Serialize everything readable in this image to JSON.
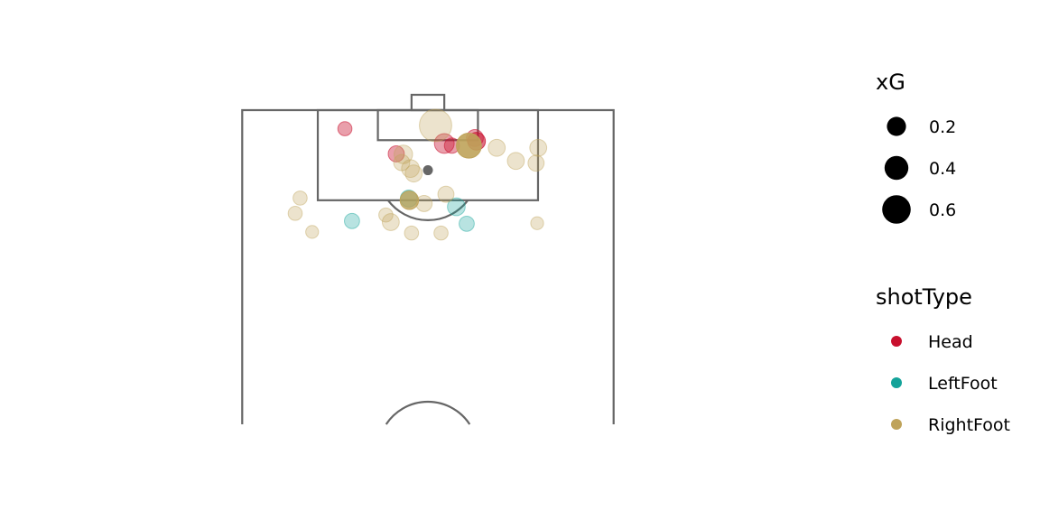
{
  "chart_data": {
    "type": "scatter",
    "title": "",
    "xlabel": "",
    "ylabel": "",
    "pitch": {
      "length_m": 105,
      "width_m": 68,
      "half_shown": "attacking"
    },
    "size_legend": {
      "title": "xG",
      "values": [
        0.2,
        0.4,
        0.6
      ],
      "labels": [
        "0.2",
        "0.4",
        "0.6"
      ]
    },
    "color_legend": {
      "title": "shotType",
      "entries": [
        {
          "name": "Head",
          "color": "#c8102e"
        },
        {
          "name": "LeftFoot",
          "color": "#14a39a"
        },
        {
          "name": "RightFoot",
          "color": "#bfa35a"
        }
      ]
    },
    "colors": {
      "line": "#666666",
      "penalty_spot": "#666666"
    },
    "series": [
      {
        "name": "Head",
        "color": "#c8102e",
        "points": [
          {
            "x": -15.2,
            "y": 101.6,
            "xG": 0.03,
            "alpha": 0.4
          },
          {
            "x": 3.0,
            "y": 98.9,
            "xG": 0.1,
            "alpha": 0.4
          },
          {
            "x": 4.4,
            "y": 98.5,
            "xG": 0.04,
            "alpha": 0.4
          },
          {
            "x": 8.6,
            "y": 99.9,
            "xG": 0.06,
            "alpha": 0.4
          },
          {
            "x": 8.9,
            "y": 99.3,
            "xG": 0.07,
            "alpha": 0.6
          },
          {
            "x": -5.8,
            "y": 97.0,
            "xG": 0.05,
            "alpha": 0.4
          }
        ]
      },
      {
        "name": "LeftFoot",
        "color": "#14a39a",
        "points": [
          {
            "x": -3.5,
            "y": 88.8,
            "xG": 0.06,
            "alpha": 0.4
          },
          {
            "x": 5.2,
            "y": 87.3,
            "xG": 0.07,
            "alpha": 0.3
          },
          {
            "x": -13.9,
            "y": 84.7,
            "xG": 0.04,
            "alpha": 0.3
          },
          {
            "x": 7.1,
            "y": 84.2,
            "xG": 0.04,
            "alpha": 0.3
          }
        ]
      },
      {
        "name": "RightFoot",
        "color": "#bfa35a",
        "points": [
          {
            "x": 1.4,
            "y": 102.2,
            "xG": 0.4,
            "alpha": 0.3
          },
          {
            "x": 7.5,
            "y": 98.5,
            "xG": 0.2,
            "alpha": 0.9
          },
          {
            "x": 12.6,
            "y": 98.1,
            "xG": 0.06,
            "alpha": 0.3
          },
          {
            "x": 20.2,
            "y": 98.1,
            "xG": 0.06,
            "alpha": 0.3
          },
          {
            "x": -4.5,
            "y": 96.9,
            "xG": 0.08,
            "alpha": 0.3
          },
          {
            "x": -4.8,
            "y": 95.4,
            "xG": 0.05,
            "alpha": 0.3
          },
          {
            "x": -3.2,
            "y": 94.3,
            "xG": 0.07,
            "alpha": 0.3
          },
          {
            "x": -2.6,
            "y": 93.4,
            "xG": 0.06,
            "alpha": 0.3
          },
          {
            "x": 16.1,
            "y": 95.7,
            "xG": 0.06,
            "alpha": 0.3
          },
          {
            "x": 19.8,
            "y": 95.3,
            "xG": 0.05,
            "alpha": 0.3
          },
          {
            "x": -3.4,
            "y": 88.5,
            "xG": 0.08,
            "alpha": 0.8
          },
          {
            "x": 3.3,
            "y": 89.6,
            "xG": 0.05,
            "alpha": 0.3
          },
          {
            "x": -0.7,
            "y": 87.9,
            "xG": 0.05,
            "alpha": 0.3
          },
          {
            "x": -23.4,
            "y": 88.9,
            "xG": 0.03,
            "alpha": 0.3
          },
          {
            "x": -24.3,
            "y": 86.1,
            "xG": 0.03,
            "alpha": 0.3
          },
          {
            "x": -7.7,
            "y": 85.8,
            "xG": 0.03,
            "alpha": 0.3
          },
          {
            "x": -6.8,
            "y": 84.5,
            "xG": 0.06,
            "alpha": 0.3
          },
          {
            "x": -21.2,
            "y": 82.7,
            "xG": 0.02,
            "alpha": 0.3
          },
          {
            "x": -3.0,
            "y": 82.5,
            "xG": 0.03,
            "alpha": 0.3
          },
          {
            "x": 2.4,
            "y": 82.5,
            "xG": 0.03,
            "alpha": 0.3
          },
          {
            "x": 20.0,
            "y": 84.3,
            "xG": 0.02,
            "alpha": 0.3
          }
        ]
      }
    ],
    "grid": false,
    "legend_position": "right"
  }
}
